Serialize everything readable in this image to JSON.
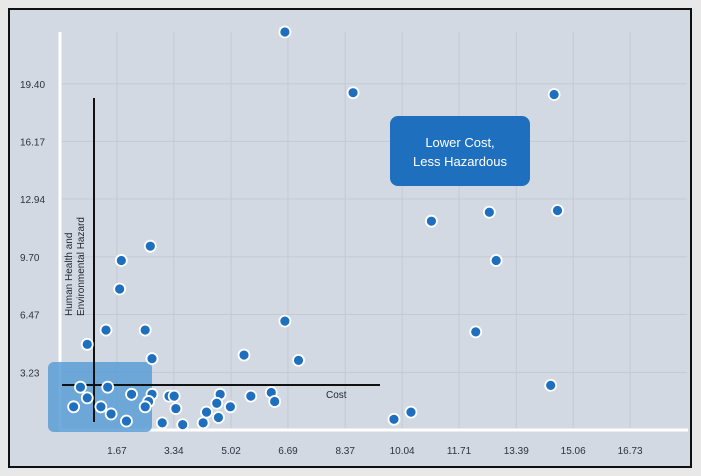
{
  "chart_data": {
    "type": "scatter",
    "title": "",
    "xlabel": "Cost",
    "ylabel_lines": [
      "Human Health and",
      "Environmental Hazard"
    ],
    "x_ticks": [
      "1.67",
      "3.34",
      "5.02",
      "6.69",
      "8.37",
      "10.04",
      "11.71",
      "13.39",
      "15.06",
      "16.73"
    ],
    "y_ticks": [
      "3.23",
      "6.47",
      "9.70",
      "12.94",
      "16.17",
      "19.40"
    ],
    "xlim": [
      0,
      18.4
    ],
    "ylim": [
      0,
      22.3
    ],
    "grid": true,
    "annotation_lines": [
      "Lower Cost,",
      "Less Hazardous"
    ],
    "colors": {
      "point": "#1f6fbf",
      "callout": "#1f6fbf",
      "highlight": "#5b9ed6",
      "grid": "#c3cad4"
    },
    "points": [
      {
        "x": 6.6,
        "y": 22.3
      },
      {
        "x": 8.6,
        "y": 18.9
      },
      {
        "x": 14.5,
        "y": 18.8
      },
      {
        "x": 14.6,
        "y": 12.3
      },
      {
        "x": 12.6,
        "y": 12.2
      },
      {
        "x": 10.9,
        "y": 11.7
      },
      {
        "x": 2.65,
        "y": 10.3
      },
      {
        "x": 12.8,
        "y": 9.5
      },
      {
        "x": 1.8,
        "y": 9.5
      },
      {
        "x": 1.75,
        "y": 7.9
      },
      {
        "x": 6.6,
        "y": 6.1
      },
      {
        "x": 1.35,
        "y": 5.6
      },
      {
        "x": 2.5,
        "y": 5.6
      },
      {
        "x": 12.2,
        "y": 5.5
      },
      {
        "x": 0.8,
        "y": 4.8
      },
      {
        "x": 2.7,
        "y": 4.0
      },
      {
        "x": 5.4,
        "y": 4.2
      },
      {
        "x": 7.0,
        "y": 3.9
      },
      {
        "x": 14.4,
        "y": 2.5
      },
      {
        "x": 0.6,
        "y": 2.4
      },
      {
        "x": 1.4,
        "y": 2.4
      },
      {
        "x": 2.7,
        "y": 2.0
      },
      {
        "x": 2.1,
        "y": 2.0
      },
      {
        "x": 3.2,
        "y": 1.9
      },
      {
        "x": 3.35,
        "y": 1.9
      },
      {
        "x": 4.7,
        "y": 2.0
      },
      {
        "x": 5.6,
        "y": 1.9
      },
      {
        "x": 6.2,
        "y": 2.1
      },
      {
        "x": 0.8,
        "y": 1.8
      },
      {
        "x": 6.3,
        "y": 1.6
      },
      {
        "x": 2.6,
        "y": 1.6
      },
      {
        "x": 4.6,
        "y": 1.5
      },
      {
        "x": 2.5,
        "y": 1.3
      },
      {
        "x": 0.4,
        "y": 1.3
      },
      {
        "x": 1.2,
        "y": 1.3
      },
      {
        "x": 5.0,
        "y": 1.3
      },
      {
        "x": 3.4,
        "y": 1.2
      },
      {
        "x": 4.3,
        "y": 1.0
      },
      {
        "x": 10.3,
        "y": 1.0
      },
      {
        "x": 1.5,
        "y": 0.9
      },
      {
        "x": 4.65,
        "y": 0.7
      },
      {
        "x": 9.8,
        "y": 0.6
      },
      {
        "x": 1.95,
        "y": 0.5
      },
      {
        "x": 3.0,
        "y": 0.4
      },
      {
        "x": 4.2,
        "y": 0.4
      },
      {
        "x": 3.6,
        "y": 0.3
      }
    ]
  }
}
